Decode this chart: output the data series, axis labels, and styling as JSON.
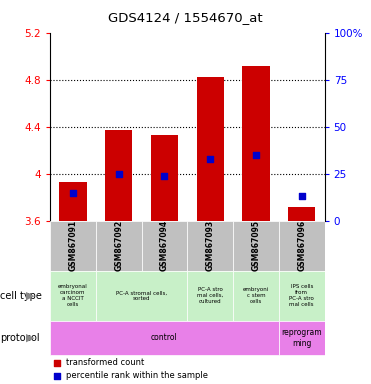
{
  "title": "GDS4124 / 1554670_at",
  "samples": [
    "GSM867091",
    "GSM867092",
    "GSM867094",
    "GSM867093",
    "GSM867095",
    "GSM867096"
  ],
  "transformed_counts": [
    3.93,
    4.37,
    4.33,
    4.82,
    4.92,
    3.72
  ],
  "bar_bottom": 3.6,
  "percentile_ranks": [
    15,
    25,
    24,
    33,
    35,
    13
  ],
  "ylim_left": [
    3.6,
    5.2
  ],
  "ylim_right": [
    0,
    100
  ],
  "yticks_left": [
    3.6,
    4.0,
    4.4,
    4.8,
    5.2
  ],
  "yticks_right": [
    0,
    25,
    50,
    75,
    100
  ],
  "ytick_labels_left": [
    "3.6",
    "4",
    "4.4",
    "4.8",
    "5.2"
  ],
  "ytick_labels_right": [
    "0",
    "25",
    "50",
    "75",
    "100%"
  ],
  "cell_type_data": [
    [
      0,
      1,
      "embryonal\ncarcinom\na NCCIT\ncells",
      "#c8f0c8"
    ],
    [
      1,
      3,
      "PC-A stromal cells,\nsorted",
      "#c8f0c8"
    ],
    [
      3,
      4,
      "PC-A stro\nmal cells,\ncultured",
      "#c8f0c8"
    ],
    [
      4,
      5,
      "embryoni\nc stem\ncells",
      "#c8f0c8"
    ],
    [
      5,
      6,
      "IPS cells\nfrom\nPC-A stro\nmal cells",
      "#c8f0c8"
    ]
  ],
  "protocol_data": [
    [
      0,
      5,
      "control",
      "#e880e8"
    ],
    [
      5,
      6,
      "reprogram\nming",
      "#e880e8"
    ]
  ],
  "bar_color": "#cc0000",
  "dot_color": "#0000cc",
  "background_color": "#ffffff",
  "sample_bg_color": "#c0c0c0",
  "grid_dotted_vals": [
    4.0,
    4.4,
    4.8
  ]
}
